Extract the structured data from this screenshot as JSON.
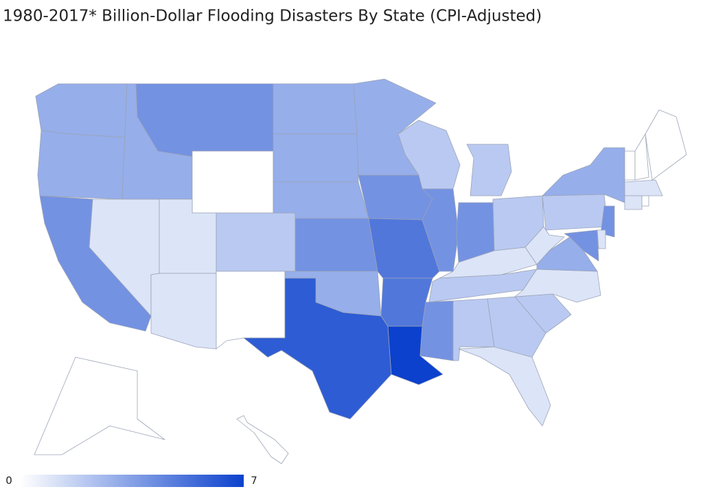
{
  "chart_data": {
    "type": "choropleth",
    "title": "1980-2017* Billion-Dollar Flooding Disasters By State (CPI-Adjusted)",
    "values": {
      "WA": 3,
      "OR": 3,
      "CA": 4,
      "NV": 1,
      "ID": 3,
      "MT": 4,
      "WY": 0,
      "UT": 1,
      "AZ": 1,
      "CO": 2,
      "NM": 0,
      "ND": 3,
      "SD": 3,
      "NE": 3,
      "KS": 4,
      "OK": 3,
      "TX": 6,
      "MN": 3,
      "IA": 4,
      "MO": 5,
      "AR": 5,
      "LA": 7,
      "WI": 2,
      "IL": 4,
      "MI": 2,
      "IN": 4,
      "OH": 2,
      "KY": 1,
      "TN": 2,
      "MS": 4,
      "AL": 2,
      "GA": 2,
      "FL": 1,
      "SC": 2,
      "NC": 1,
      "VA": 3,
      "WV": 1,
      "PA": 2,
      "NY": 3,
      "NJ": 4,
      "MD": 4,
      "DE": 1,
      "VT": 0,
      "NH": 0,
      "ME": 0,
      "MA": 1,
      "CT": 1,
      "RI": 0,
      "AK": 0,
      "HI": 0
    },
    "colorbar": {
      "min": 0,
      "max": 7,
      "colors": [
        "#ffffff",
        "#0b41cd"
      ]
    }
  }
}
